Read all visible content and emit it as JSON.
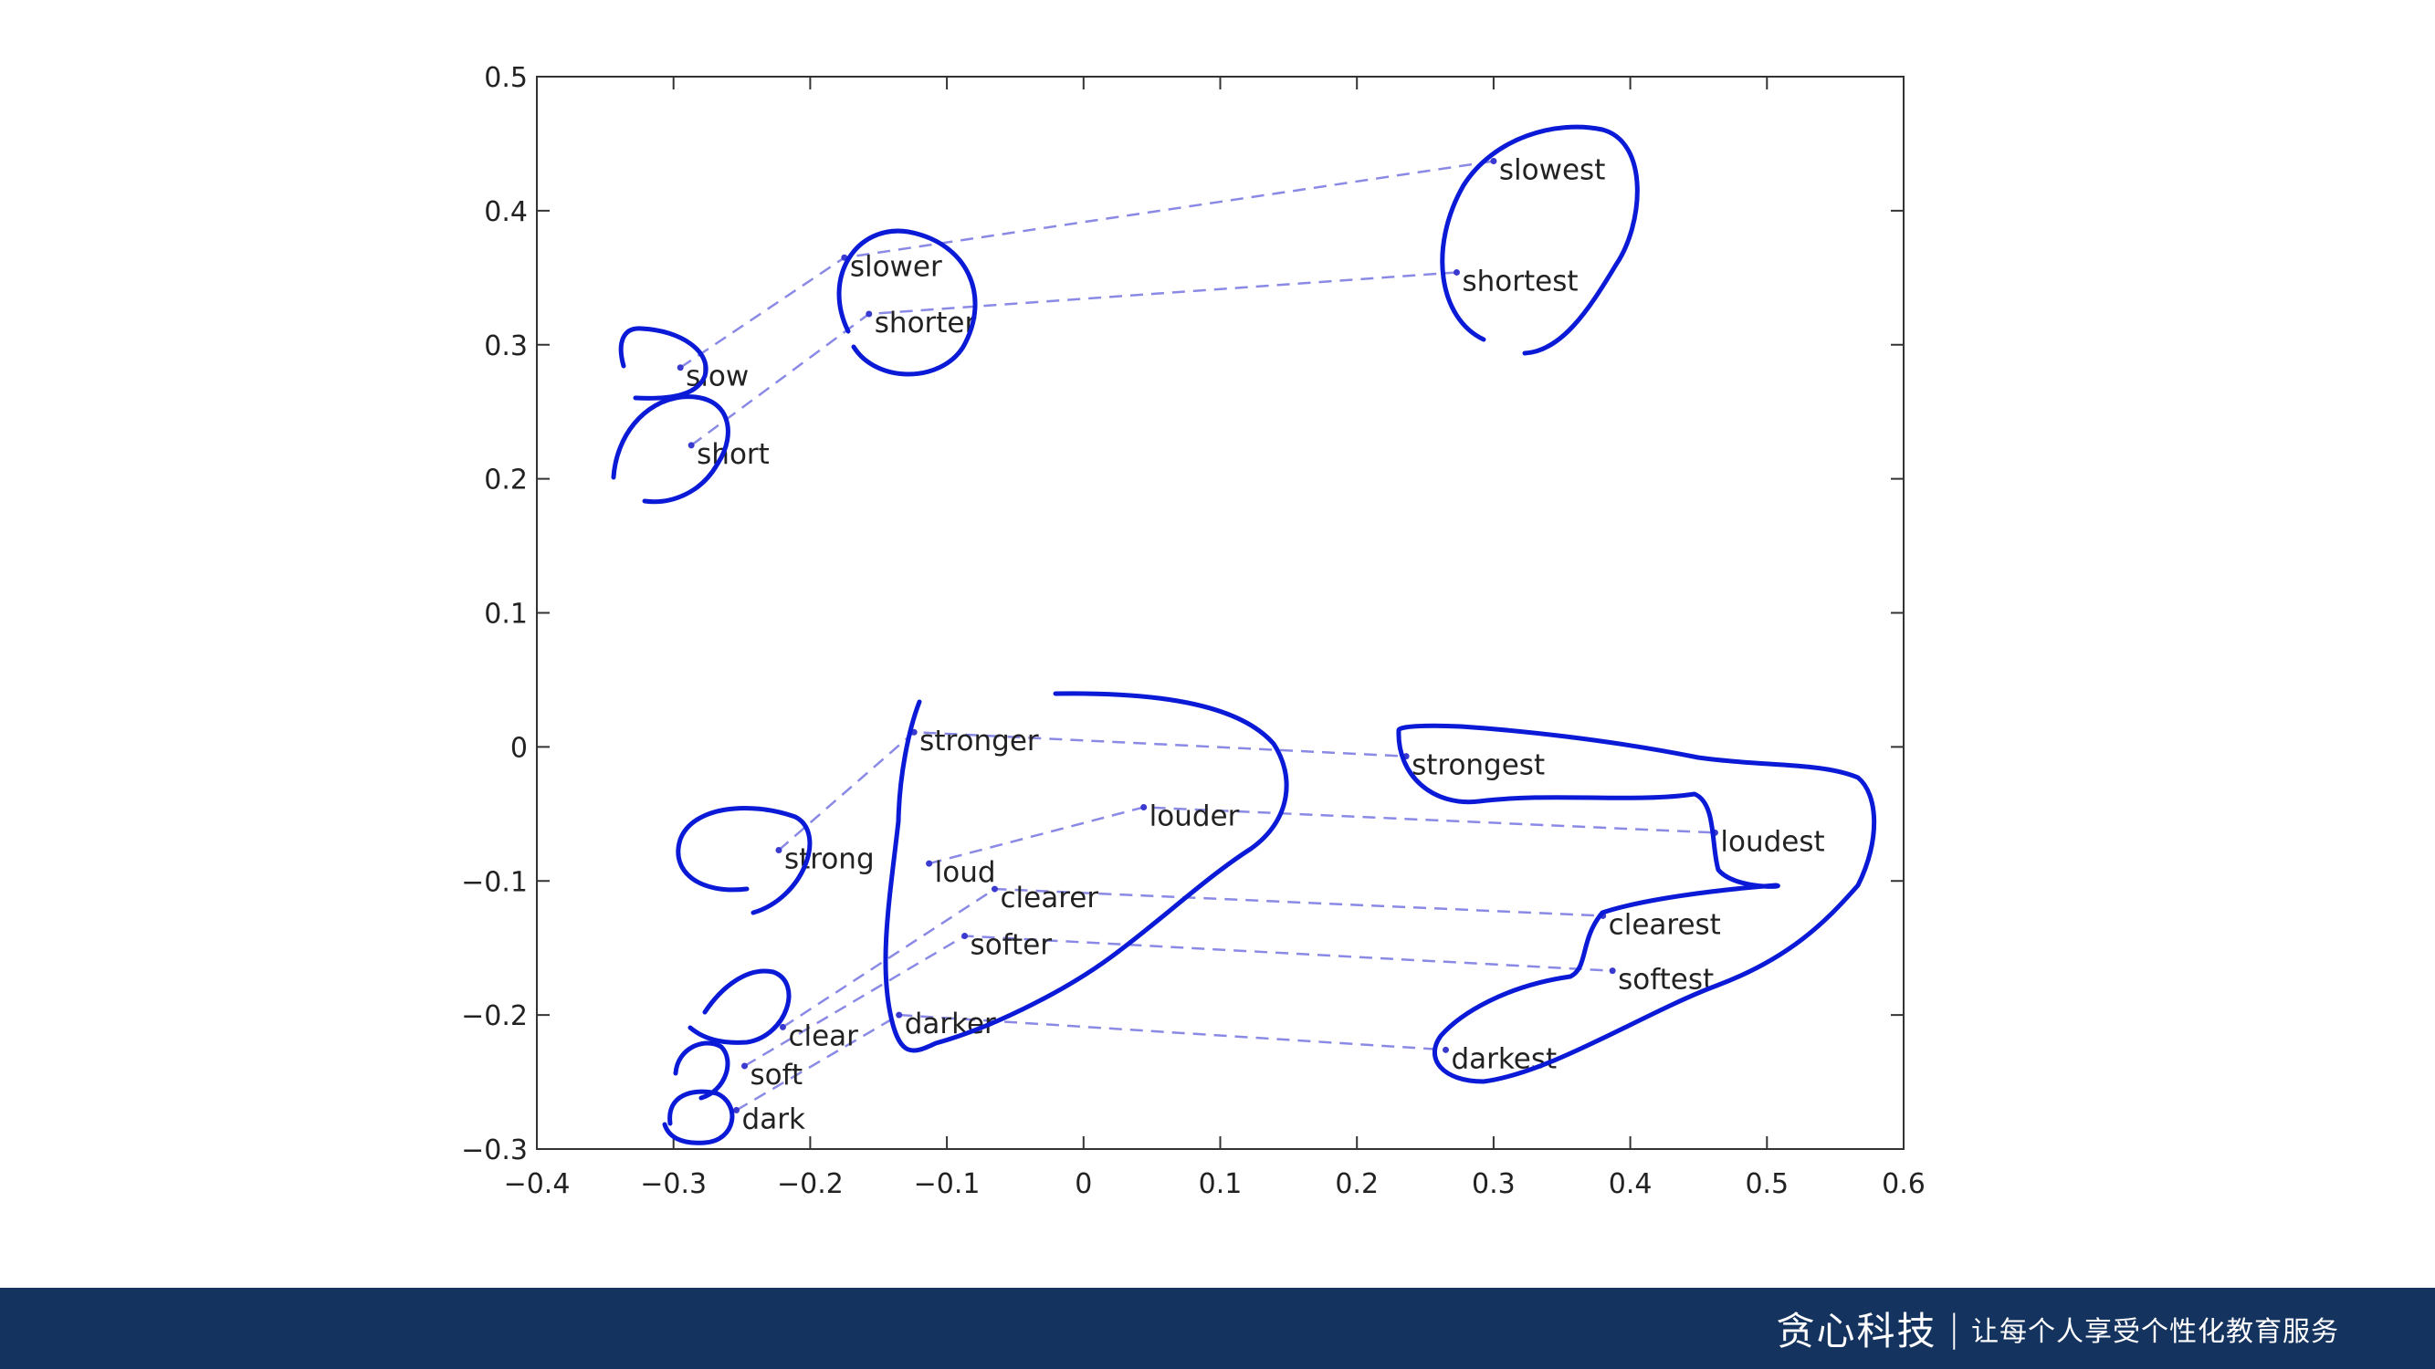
{
  "chart_data": {
    "type": "scatter",
    "title": "",
    "xlabel": "",
    "ylabel": "",
    "xlim": [
      -0.4,
      0.6
    ],
    "ylim": [
      -0.3,
      0.5
    ],
    "xticks": [
      -0.4,
      -0.3,
      -0.2,
      -0.1,
      0,
      0.1,
      0.2,
      0.3,
      0.4,
      0.5,
      0.6
    ],
    "yticks": [
      -0.3,
      -0.2,
      -0.1,
      0,
      0.1,
      0.2,
      0.3,
      0.4,
      0.5
    ],
    "xtick_labels": [
      "−0.4",
      "−0.3",
      "−0.2",
      "−0.1",
      "0",
      "0.1",
      "0.2",
      "0.3",
      "0.4",
      "0.5",
      "0.6"
    ],
    "ytick_labels": [
      "−0.3",
      "−0.2",
      "−0.1",
      "0",
      "0.1",
      "0.2",
      "0.3",
      "0.4",
      "0.5"
    ],
    "grid": false,
    "points": [
      {
        "label": "slow",
        "x": -0.295,
        "y": 0.283
      },
      {
        "label": "slower",
        "x": -0.175,
        "y": 0.365
      },
      {
        "label": "slowest",
        "x": 0.3,
        "y": 0.437
      },
      {
        "label": "short",
        "x": -0.287,
        "y": 0.225
      },
      {
        "label": "shorter",
        "x": -0.157,
        "y": 0.323
      },
      {
        "label": "shortest",
        "x": 0.273,
        "y": 0.354
      },
      {
        "label": "strong",
        "x": -0.223,
        "y": -0.077
      },
      {
        "label": "stronger",
        "x": -0.124,
        "y": 0.011
      },
      {
        "label": "strongest",
        "x": 0.236,
        "y": -0.007
      },
      {
        "label": "loud",
        "x": -0.113,
        "y": -0.087
      },
      {
        "label": "louder",
        "x": 0.044,
        "y": -0.045
      },
      {
        "label": "loudest",
        "x": 0.462,
        "y": -0.064
      },
      {
        "label": "clear",
        "x": -0.22,
        "y": -0.209
      },
      {
        "label": "clearer",
        "x": -0.065,
        "y": -0.106
      },
      {
        "label": "clearest",
        "x": 0.38,
        "y": -0.126
      },
      {
        "label": "soft",
        "x": -0.248,
        "y": -0.238
      },
      {
        "label": "softer",
        "x": -0.087,
        "y": -0.141
      },
      {
        "label": "softest",
        "x": 0.387,
        "y": -0.167
      },
      {
        "label": "dark",
        "x": -0.254,
        "y": -0.271
      },
      {
        "label": "darker",
        "x": -0.135,
        "y": -0.2
      },
      {
        "label": "darkest",
        "x": 0.265,
        "y": -0.226
      }
    ],
    "links": [
      [
        "slow",
        "slower",
        "slowest"
      ],
      [
        "short",
        "shorter",
        "shortest"
      ],
      [
        "strong",
        "stronger",
        "strongest"
      ],
      [
        "loud",
        "louder",
        "loudest"
      ],
      [
        "clear",
        "clearer",
        "clearest"
      ],
      [
        "soft",
        "softer",
        "softest"
      ],
      [
        "dark",
        "darker",
        "darkest"
      ]
    ],
    "point_color": "#3a3ad0",
    "link_color": "#8a8ae6",
    "annotation_color": "#0a1ad6"
  },
  "footer": {
    "brand": "贪心科技",
    "separator": "|",
    "slogan": "让每个人享受个性化教育服务",
    "background": "#15335f"
  }
}
